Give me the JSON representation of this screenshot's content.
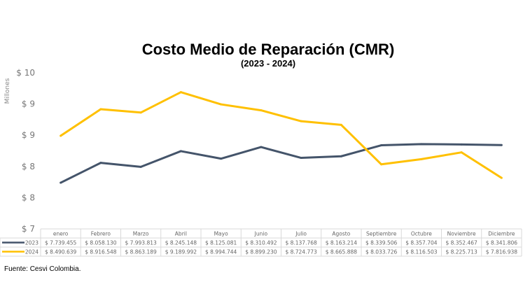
{
  "chart_data": {
    "type": "line",
    "title": "Costo Medio de Reparación (CMR)",
    "subtitle": "(2023 - 2024)",
    "ylabel": "Millones",
    "ylim": [
      7,
      9.5
    ],
    "yticks": [
      7,
      7.5,
      8,
      8.5,
      9,
      9.5
    ],
    "ytick_labels": [
      "$ 7",
      "$ 8",
      "$ 8",
      "$ 9",
      "$ 9",
      "$ 10"
    ],
    "grid": false,
    "categories": [
      "enero",
      "Febrero",
      "Marzo",
      "Abril",
      "Mayo",
      "Junio",
      "Julio",
      "Agosto",
      "Septiembre",
      "Octubre",
      "Noviembre",
      "Diciembre"
    ],
    "series": [
      {
        "name": "2023",
        "color": "#44546A",
        "values": [
          7.739455,
          8.05813,
          7.993813,
          8.245148,
          8.125081,
          8.310492,
          8.137768,
          8.163214,
          8.339506,
          8.357704,
          8.352467,
          8.341806
        ],
        "labels": [
          "$ 7.739.455",
          "$ 8.058.130",
          "$ 7.993.813",
          "$ 8.245.148",
          "$ 8.125.081",
          "$ 8.310.492",
          "$ 8.137.768",
          "$ 8.163.214",
          "$ 8.339.506",
          "$ 8.357.704",
          "$ 8.352.467",
          "$ 8.341.806"
        ]
      },
      {
        "name": "2024",
        "color": "#FFC000",
        "values": [
          8.490639,
          8.916548,
          8.863189,
          9.189992,
          8.994744,
          8.89923,
          8.724773,
          8.665888,
          8.033726,
          8.116503,
          8.225713,
          7.816938
        ],
        "labels": [
          "$ 8.490.639",
          "$ 8.916.548",
          "$ 8.863.189",
          "$ 9.189.992",
          "$ 8.994.744",
          "$ 8.899.230",
          "$ 8.724.773",
          "$ 8.665.888",
          "$ 8.033.726",
          "$ 8.116.503",
          "$ 8.225.713",
          "$ 7.816.938"
        ]
      }
    ],
    "legend": "data-table-left"
  },
  "source": "Fuente: Cesvi Colombia."
}
